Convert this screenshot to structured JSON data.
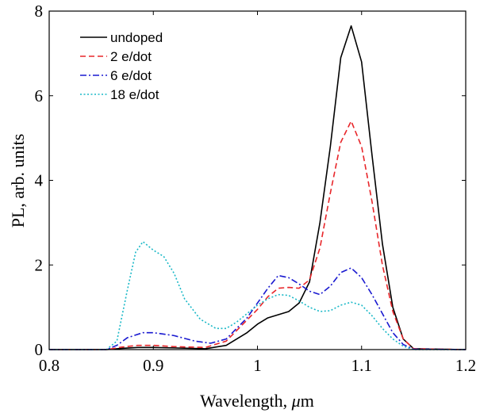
{
  "chart_data": {
    "type": "line",
    "xlabel": "Wavelength, ",
    "xlabel_symbol": "μ",
    "xlabel_unit": "m",
    "ylabel": "PL, arb. units",
    "xlim": [
      0.8,
      1.2
    ],
    "ylim": [
      0,
      8
    ],
    "xticks": [
      0.8,
      0.9,
      1,
      1.1,
      1.2
    ],
    "xtick_labels": [
      "0.8",
      "0.9",
      "1",
      "1.1",
      "1.2"
    ],
    "yticks": [
      0,
      2,
      4,
      6,
      8
    ],
    "ytick_labels": [
      "0",
      "2",
      "4",
      "6",
      "8"
    ],
    "grid": false,
    "legend_position": "top-left",
    "series": [
      {
        "name": "undoped",
        "color": "#000000",
        "dash": "solid",
        "points": [
          [
            0.8,
            0
          ],
          [
            0.855,
            0
          ],
          [
            0.87,
            0.03
          ],
          [
            0.885,
            0.05
          ],
          [
            0.9,
            0.05
          ],
          [
            0.92,
            0.04
          ],
          [
            0.95,
            0.02
          ],
          [
            0.97,
            0.1
          ],
          [
            0.99,
            0.4
          ],
          [
            1.0,
            0.6
          ],
          [
            1.01,
            0.75
          ],
          [
            1.03,
            0.9
          ],
          [
            1.04,
            1.1
          ],
          [
            1.05,
            1.6
          ],
          [
            1.06,
            3.0
          ],
          [
            1.07,
            4.8
          ],
          [
            1.08,
            6.9
          ],
          [
            1.09,
            7.65
          ],
          [
            1.1,
            6.8
          ],
          [
            1.11,
            4.6
          ],
          [
            1.12,
            2.5
          ],
          [
            1.13,
            1.0
          ],
          [
            1.14,
            0.25
          ],
          [
            1.15,
            0.02
          ],
          [
            1.2,
            0
          ]
        ]
      },
      {
        "name": "2 e/dot",
        "color": "#e8262a",
        "dash": "dashed",
        "points": [
          [
            0.8,
            0
          ],
          [
            0.855,
            0
          ],
          [
            0.87,
            0.06
          ],
          [
            0.885,
            0.1
          ],
          [
            0.9,
            0.1
          ],
          [
            0.92,
            0.07
          ],
          [
            0.95,
            0.05
          ],
          [
            0.97,
            0.2
          ],
          [
            0.99,
            0.7
          ],
          [
            1.0,
            0.95
          ],
          [
            1.01,
            1.25
          ],
          [
            1.02,
            1.45
          ],
          [
            1.03,
            1.47
          ],
          [
            1.04,
            1.45
          ],
          [
            1.05,
            1.65
          ],
          [
            1.06,
            2.4
          ],
          [
            1.07,
            3.7
          ],
          [
            1.08,
            4.9
          ],
          [
            1.09,
            5.4
          ],
          [
            1.1,
            4.8
          ],
          [
            1.11,
            3.5
          ],
          [
            1.12,
            2.0
          ],
          [
            1.13,
            0.9
          ],
          [
            1.14,
            0.25
          ],
          [
            1.15,
            0.02
          ],
          [
            1.2,
            0
          ]
        ]
      },
      {
        "name": "6 e/dot",
        "color": "#1a1ad0",
        "dash": "dashdot",
        "points": [
          [
            0.8,
            0
          ],
          [
            0.855,
            0
          ],
          [
            0.865,
            0.1
          ],
          [
            0.875,
            0.28
          ],
          [
            0.89,
            0.4
          ],
          [
            0.9,
            0.4
          ],
          [
            0.92,
            0.33
          ],
          [
            0.94,
            0.2
          ],
          [
            0.955,
            0.15
          ],
          [
            0.97,
            0.25
          ],
          [
            0.99,
            0.75
          ],
          [
            1.0,
            1.1
          ],
          [
            1.01,
            1.45
          ],
          [
            1.02,
            1.75
          ],
          [
            1.03,
            1.7
          ],
          [
            1.04,
            1.55
          ],
          [
            1.05,
            1.38
          ],
          [
            1.06,
            1.3
          ],
          [
            1.07,
            1.5
          ],
          [
            1.08,
            1.82
          ],
          [
            1.09,
            1.93
          ],
          [
            1.1,
            1.7
          ],
          [
            1.11,
            1.3
          ],
          [
            1.12,
            0.85
          ],
          [
            1.13,
            0.4
          ],
          [
            1.14,
            0.12
          ],
          [
            1.15,
            0.01
          ],
          [
            1.2,
            0
          ]
        ]
      },
      {
        "name": "18 e/dot",
        "color": "#19b8c7",
        "dash": "dotted",
        "points": [
          [
            0.8,
            0
          ],
          [
            0.855,
            0
          ],
          [
            0.865,
            0.2
          ],
          [
            0.875,
            1.4
          ],
          [
            0.883,
            2.3
          ],
          [
            0.89,
            2.55
          ],
          [
            0.9,
            2.35
          ],
          [
            0.91,
            2.2
          ],
          [
            0.92,
            1.8
          ],
          [
            0.93,
            1.2
          ],
          [
            0.945,
            0.72
          ],
          [
            0.96,
            0.5
          ],
          [
            0.97,
            0.5
          ],
          [
            0.98,
            0.65
          ],
          [
            0.99,
            0.85
          ],
          [
            1.0,
            1.05
          ],
          [
            1.01,
            1.2
          ],
          [
            1.02,
            1.3
          ],
          [
            1.03,
            1.28
          ],
          [
            1.04,
            1.15
          ],
          [
            1.05,
            1.0
          ],
          [
            1.06,
            0.9
          ],
          [
            1.07,
            0.92
          ],
          [
            1.08,
            1.05
          ],
          [
            1.09,
            1.12
          ],
          [
            1.1,
            1.05
          ],
          [
            1.11,
            0.8
          ],
          [
            1.12,
            0.5
          ],
          [
            1.13,
            0.25
          ],
          [
            1.14,
            0.08
          ],
          [
            1.15,
            0
          ],
          [
            1.2,
            0
          ]
        ]
      }
    ]
  }
}
